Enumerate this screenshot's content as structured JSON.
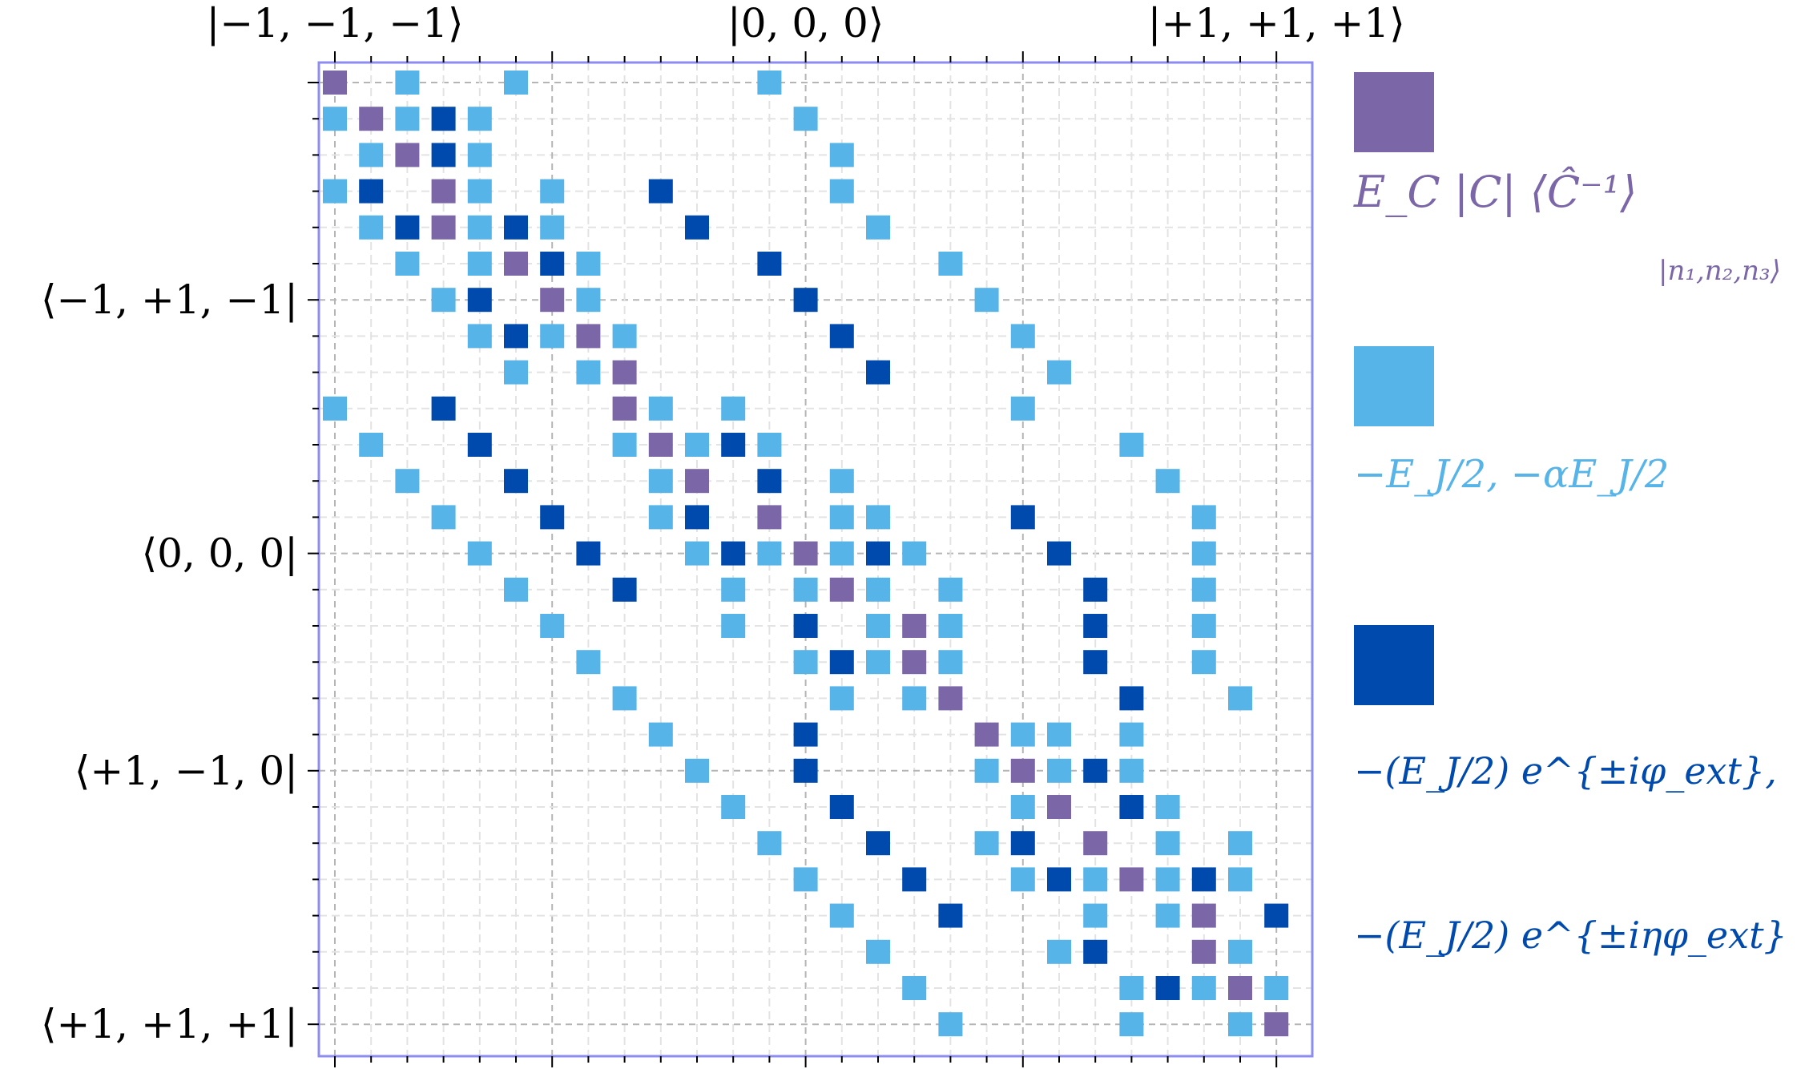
{
  "chart_data": {
    "type": "heatmap",
    "size": 27,
    "top_labels": [
      {
        "index": 0,
        "text": "|−1, −1, −1⟩"
      },
      {
        "index": 13,
        "text": "|0, 0, 0⟩"
      },
      {
        "index": 26,
        "text": "|+1, +1, +1⟩"
      }
    ],
    "left_labels": [
      {
        "index": 6,
        "text": "⟨−1, +1, −1|"
      },
      {
        "index": 13,
        "text": "⟨0, 0, 0|"
      },
      {
        "index": 19,
        "text": "⟨+1, −1, 0|"
      },
      {
        "index": 26,
        "text": "⟨+1, +1, +1|"
      }
    ],
    "categories": [
      {
        "key": "C",
        "color": "#7b67a8",
        "legend_lines": [
          "E_C |C| ⟨Ĉ⁻¹⟩",
          "|n₁,n₂,n₃⟩"
        ]
      },
      {
        "key": "L",
        "color": "#56b4e9",
        "legend_lines": [
          "−E_J/2,  −αE_J/2"
        ]
      },
      {
        "key": "D",
        "color": "#004aad",
        "legend_lines": [
          "−(E_J/2) e^{±iφ_ext},",
          "−(E_J/2) e^{±iηφ_ext}"
        ]
      }
    ],
    "rows": [
      "C L  L      L             ",
      "LCLDL        L            ",
      " LCDL         L           ",
      "LD CL L  D    L           ",
      " LDCLDL   D    L          ",
      "  L LCDL    D    L        ",
      "   LD CL     D    L       ",
      "    LDLCL     D    L      ",
      "     L LC      D    L     ",
      "L  D    CL L       L      ",
      " L  D   LCLDL         L   ",
      "  L  D   LC D L        L  ",
      "   L  D  LD C LL   D    L ",
      "    L  D  LDLCLDL   D   L ",
      "     L  D  L LCL L   D  L ",
      "      L    L D LCL   D  L ",
      "       L     LDLCL   D  L ",
      "        L     L LC    D  L",
      "         L   D    CLL L   ",
      "          L  D    LCLDL   ",
      "           L  D    LC DL  ",
      "            L  D  LD C L L",
      "             L  D  LDLCLDL",
      "              L  D   L LC DL",
      "               L    LD  CL",
      "                L     LDLCL",
      "                 L    L  LC"
    ]
  }
}
